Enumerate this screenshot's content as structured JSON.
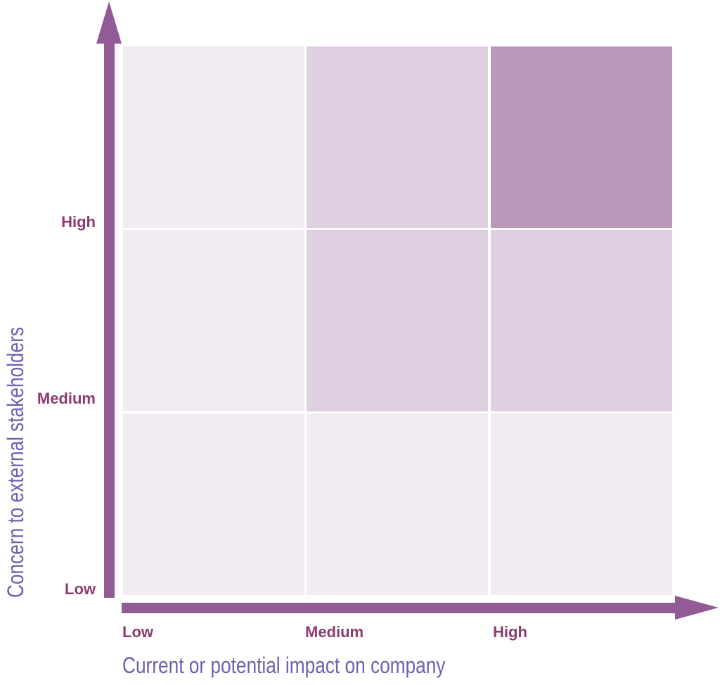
{
  "diagram": {
    "x_axis_title": "Current or potential impact on company",
    "y_axis_title": "Concern to external stakeholders",
    "x_ticks": [
      "Low",
      "Medium",
      "High"
    ],
    "y_ticks": [
      "High",
      "Medium",
      "Low"
    ],
    "colors": {
      "axis": "#935b96",
      "tick_text": "#8e3a6e",
      "title_text": "#6b62b0",
      "light": "#f2ebf2",
      "medium": "#dfcfe0",
      "dark": "#bb99bc"
    },
    "grid": [
      [
        "light",
        "medium",
        "dark"
      ],
      [
        "light",
        "medium",
        "medium"
      ],
      [
        "light",
        "light",
        "light"
      ]
    ]
  }
}
